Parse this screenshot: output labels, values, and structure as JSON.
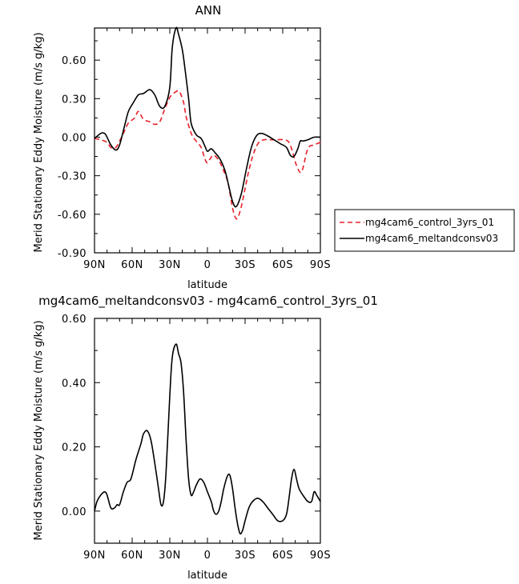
{
  "chart_data": [
    {
      "type": "line",
      "title": "ANN",
      "xlabel": "latitude",
      "ylabel": "Merid Stationary Eddy Moisture (m/s g/kg)",
      "xlim": [
        90,
        -90
      ],
      "ylim": [
        -0.9,
        0.85
      ],
      "xticks": [
        90,
        60,
        30,
        0,
        -30,
        -60,
        -90
      ],
      "xtick_labels": [
        "90N",
        "60N",
        "30N",
        "0",
        "30S",
        "60S",
        "90S"
      ],
      "yticks": [
        0.6,
        0.3,
        0.0,
        -0.3,
        -0.6,
        -0.9
      ],
      "ytick_labels": [
        "0.60",
        "0.30",
        "0.00",
        "-0.30",
        "-0.60",
        "-0.90"
      ],
      "legend_position": "outside-right",
      "series": [
        {
          "name": "mg4cam6_control_3yrs_01",
          "color": "#e8202a",
          "dash": "dashed",
          "x": [
            90,
            85,
            80,
            77,
            73,
            70,
            66,
            63,
            58,
            55,
            51,
            46,
            42,
            38,
            34,
            30,
            27,
            24,
            22,
            19,
            17,
            14,
            12,
            9,
            5,
            2,
            0,
            -2,
            -5,
            -9,
            -12,
            -16,
            -18,
            -20,
            -22,
            -24,
            -27,
            -30,
            -33,
            -37,
            -41,
            -45,
            -50,
            -55,
            -61,
            -65,
            -68,
            -71,
            -75,
            -80,
            -85,
            -90
          ],
          "y": [
            -0.01,
            -0.02,
            -0.04,
            -0.08,
            -0.08,
            -0.03,
            0.05,
            0.11,
            0.15,
            0.2,
            0.14,
            0.12,
            0.1,
            0.12,
            0.22,
            0.31,
            0.34,
            0.36,
            0.35,
            0.27,
            0.16,
            0.06,
            0.01,
            -0.03,
            -0.08,
            -0.17,
            -0.2,
            -0.17,
            -0.14,
            -0.18,
            -0.24,
            -0.34,
            -0.44,
            -0.55,
            -0.62,
            -0.63,
            -0.54,
            -0.4,
            -0.26,
            -0.12,
            -0.04,
            -0.02,
            -0.02,
            -0.02,
            -0.02,
            -0.04,
            -0.12,
            -0.22,
            -0.27,
            -0.09,
            -0.06,
            -0.04
          ]
        },
        {
          "name": "mg4cam6_meltandconsv03",
          "color": "#000000",
          "dash": "solid",
          "x": [
            90,
            85,
            82,
            80,
            77,
            73,
            70,
            66,
            63,
            59,
            55,
            51,
            46,
            42,
            38,
            34,
            30,
            28,
            25,
            23,
            20,
            18,
            15,
            13,
            9,
            5,
            2,
            0,
            -3,
            -6,
            -10,
            -14,
            -17,
            -20,
            -23,
            -27,
            -31,
            -35,
            -39,
            -43,
            -48,
            -53,
            -58,
            -63,
            -66,
            -69,
            -72,
            -74,
            -76,
            -80,
            -85,
            -90
          ],
          "y": [
            -0.01,
            0.03,
            0.03,
            0.0,
            -0.06,
            -0.1,
            -0.06,
            0.09,
            0.2,
            0.27,
            0.33,
            0.34,
            0.37,
            0.33,
            0.24,
            0.24,
            0.39,
            0.7,
            0.85,
            0.8,
            0.68,
            0.54,
            0.3,
            0.11,
            0.02,
            -0.01,
            -0.07,
            -0.11,
            -0.09,
            -0.12,
            -0.17,
            -0.26,
            -0.38,
            -0.5,
            -0.54,
            -0.44,
            -0.25,
            -0.08,
            0.01,
            0.03,
            0.01,
            -0.02,
            -0.05,
            -0.08,
            -0.14,
            -0.15,
            -0.09,
            -0.03,
            -0.03,
            -0.02,
            0.0,
            0.0
          ]
        }
      ]
    },
    {
      "type": "line",
      "title": "mg4cam6_meltandconsv03 - mg4cam6_control_3yrs_01",
      "xlabel": "latitude",
      "ylabel": "Merid Stationary Eddy Moisture (m/s g/kg)",
      "xlim": [
        90,
        -90
      ],
      "ylim": [
        -0.1,
        0.6
      ],
      "xticks": [
        90,
        60,
        30,
        0,
        -30,
        -60,
        -90
      ],
      "xtick_labels": [
        "90N",
        "60N",
        "30N",
        "0",
        "30S",
        "60S",
        "90S"
      ],
      "yticks": [
        0.6,
        0.4,
        0.2,
        0.0
      ],
      "ytick_labels": [
        "0.60",
        "0.40",
        "0.20",
        "0.00"
      ],
      "series": [
        {
          "name": "",
          "color": "#000000",
          "dash": "solid",
          "x": [
            90,
            88,
            85,
            82,
            80,
            77,
            74,
            72,
            70,
            67,
            64,
            61,
            57,
            53,
            51,
            48,
            45,
            42,
            39,
            37,
            35,
            33,
            30,
            28,
            25,
            23,
            21,
            19,
            17,
            15,
            13,
            11,
            9,
            6,
            3,
            0,
            -3,
            -5,
            -7,
            -9,
            -11,
            -13,
            -16,
            -18,
            -20,
            -22,
            -24,
            -26,
            -28,
            -30,
            -33,
            -36,
            -40,
            -44,
            -48,
            -52,
            -56,
            -60,
            -63,
            -65,
            -67,
            -69,
            -71,
            -73,
            -76,
            -80,
            -83,
            -85,
            -87,
            -90
          ],
          "y": [
            0.0,
            0.03,
            0.05,
            0.06,
            0.05,
            0.01,
            0.01,
            0.02,
            0.02,
            0.06,
            0.09,
            0.1,
            0.16,
            0.21,
            0.24,
            0.25,
            0.22,
            0.15,
            0.07,
            0.02,
            0.03,
            0.12,
            0.36,
            0.48,
            0.52,
            0.49,
            0.46,
            0.37,
            0.22,
            0.1,
            0.05,
            0.06,
            0.08,
            0.1,
            0.09,
            0.06,
            0.03,
            0.0,
            -0.01,
            0.0,
            0.03,
            0.07,
            0.11,
            0.11,
            0.07,
            0.01,
            -0.04,
            -0.07,
            -0.06,
            -0.03,
            0.01,
            0.03,
            0.04,
            0.03,
            0.01,
            -0.01,
            -0.03,
            -0.03,
            -0.01,
            0.04,
            0.1,
            0.13,
            0.1,
            0.07,
            0.05,
            0.03,
            0.03,
            0.06,
            0.05,
            0.03
          ]
        }
      ]
    }
  ]
}
